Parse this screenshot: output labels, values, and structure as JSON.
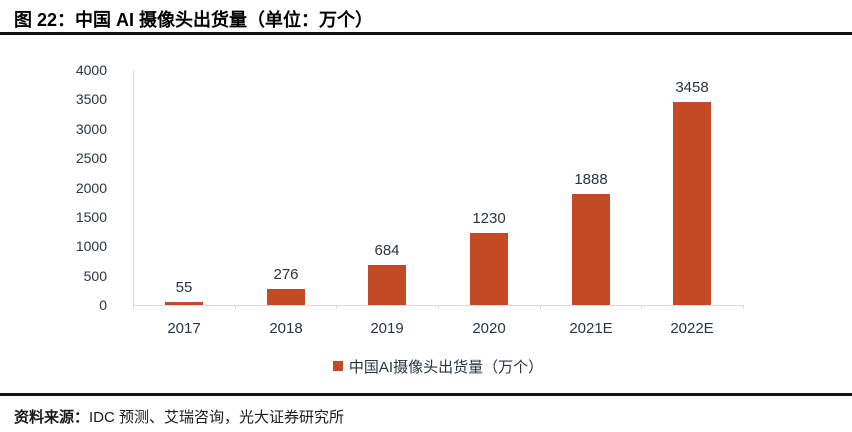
{
  "figure": {
    "title": "图 22：中国 AI 摄像头出货量（单位：万个）"
  },
  "chart_data": {
    "type": "bar",
    "title": "中国 AI 摄像头出货量（单位：万个）",
    "categories": [
      "2017",
      "2018",
      "2019",
      "2020",
      "2021E",
      "2022E"
    ],
    "values": [
      55,
      276,
      684,
      1230,
      1888,
      3458
    ],
    "ylim": [
      0,
      4000
    ],
    "ytick_step": 500,
    "yticks": [
      0,
      500,
      1000,
      1500,
      2000,
      2500,
      3000,
      3500,
      4000
    ],
    "xlabel": "",
    "ylabel": "",
    "grid": false,
    "data_labels": true,
    "legend_entries": [
      "中国AI摄像头出货量（万个）"
    ],
    "legend_position": "bottom",
    "bar_color": "#C44A26",
    "text_color": "#263645",
    "axis_color": "#D9D9D9"
  },
  "legend": {
    "marker_color": "#C44A26",
    "label": "中国AI摄像头出货量（万个）"
  },
  "footer": {
    "source_label": "资料来源：",
    "source_text": "IDC 预测、艾瑞咨询，光大证券研究所"
  }
}
